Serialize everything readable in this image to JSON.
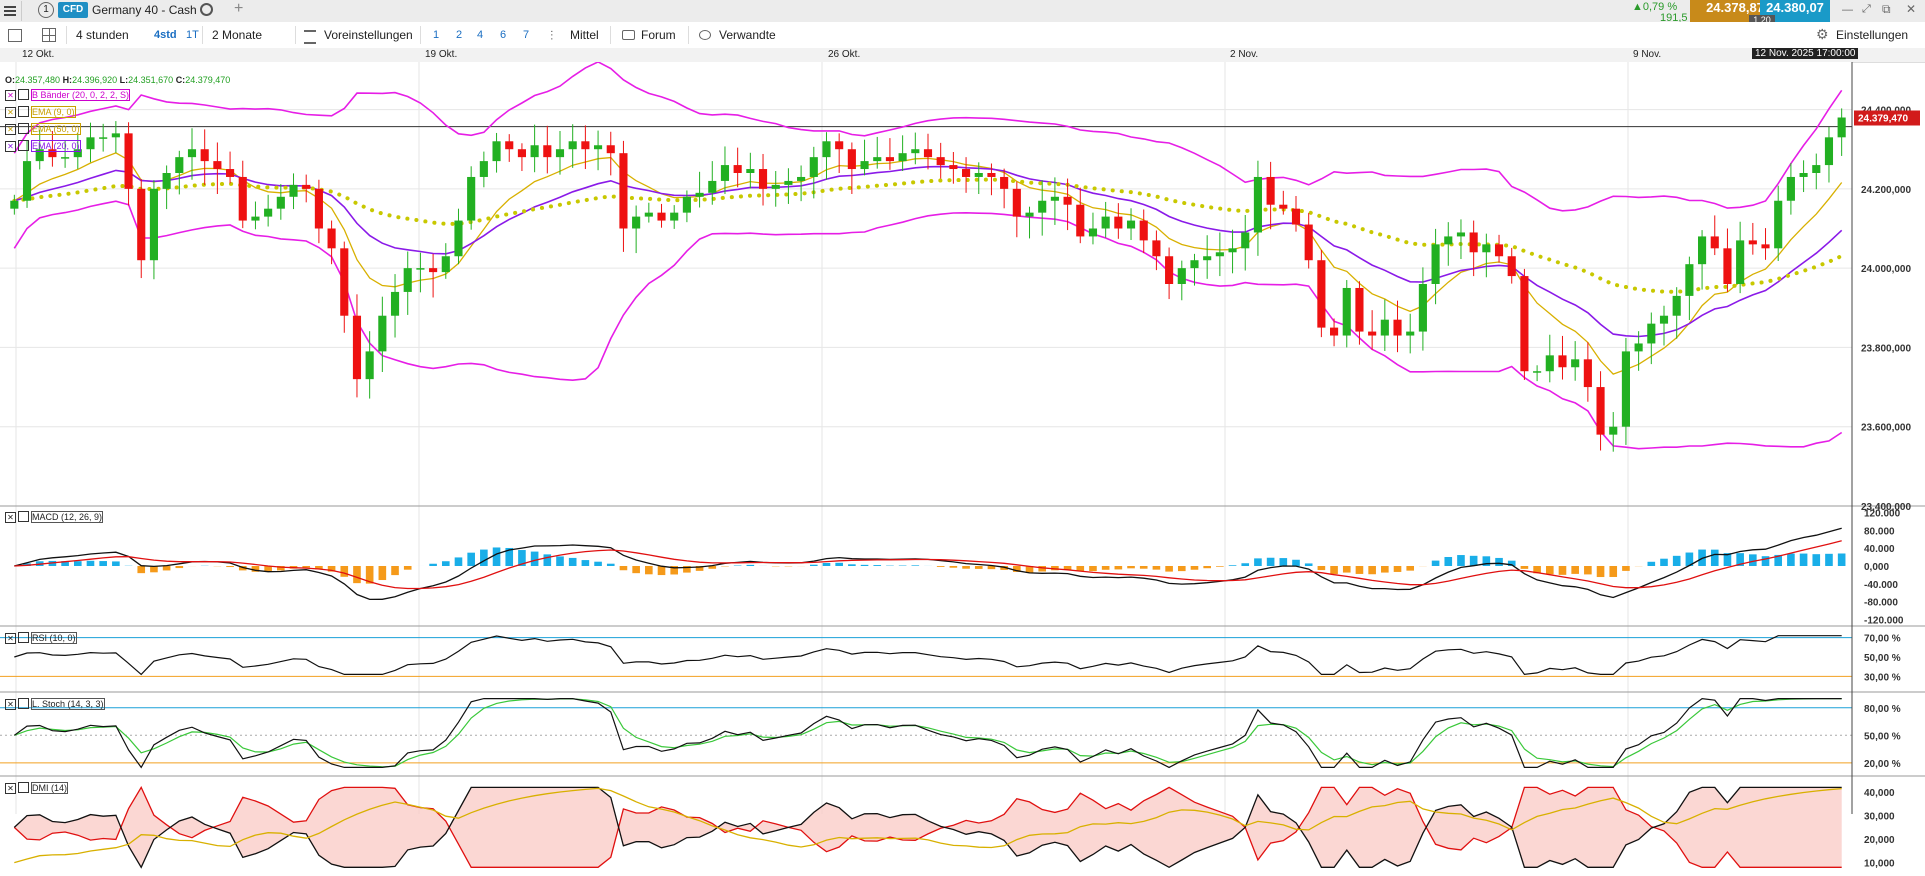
{
  "header": {
    "menu_icon": "hamburger-icon",
    "tab_number": "1",
    "badge": "CFD",
    "instrument": "Germany 40 - Cash",
    "change_pct": "▲0,79 %",
    "change_abs": "191,5",
    "bid": "24.378,87",
    "ask": "24.380,07",
    "spread": "1,20"
  },
  "toolbar": {
    "interval": "4 stunden",
    "short_4": "4std",
    "short_1t": "1T",
    "range": "2 Monate",
    "presets": "Voreinstellungen",
    "nums": [
      "1",
      "2",
      "4",
      "6",
      "7"
    ],
    "indicator": "Mittel",
    "forum": "Forum",
    "related": "Verwandte",
    "settings": "Einstellungen"
  },
  "chart_data": {
    "type": "candlestick",
    "instrument": "Germany 40 - Cash",
    "ohlc_label": {
      "o": "O:",
      "o_val": "24.357,480",
      "h": "H:",
      "h_val": "24.396,920",
      "l": "L:",
      "l_val": "24.351,670",
      "c": "C:",
      "c_val": "24.379,470"
    },
    "last_price": "24.379,470",
    "cursor_date": "12 Nov. 2025 17:00:00",
    "date_labels": [
      "12 Okt.",
      "19 Okt.",
      "26 Okt.",
      "2 Nov.",
      "9 Nov."
    ],
    "ylim": [
      23400,
      24520
    ],
    "y_ticks": [
      "24.400,000",
      "24.200,000",
      "24.000,000",
      "23.800,000",
      "23.600,000",
      "23.400,000"
    ],
    "y_values": [
      24400,
      24200,
      24000,
      23800,
      23600,
      23400
    ],
    "legend": [
      "B Bänder (20, 0, 2, 2, S)",
      "EMA (9, 0)",
      "EMA (50, 0)",
      "EMA (20, 0)"
    ],
    "closes": [
      24170,
      24270,
      24300,
      24280,
      24280,
      24300,
      24330,
      24330,
      24340,
      24200,
      24020,
      24200,
      24240,
      24280,
      24300,
      24270,
      24250,
      24230,
      24120,
      24130,
      24150,
      24180,
      24210,
      24200,
      24100,
      24050,
      23880,
      23720,
      23790,
      23880,
      23940,
      24000,
      24000,
      23990,
      24030,
      24120,
      24230,
      24270,
      24320,
      24300,
      24280,
      24310,
      24280,
      24300,
      24320,
      24300,
      24310,
      24290,
      24100,
      24130,
      24140,
      24120,
      24140,
      24180,
      24190,
      24220,
      24260,
      24240,
      24250,
      24200,
      24210,
      24220,
      24230,
      24280,
      24320,
      24300,
      24250,
      24270,
      24280,
      24270,
      24290,
      24300,
      24280,
      24260,
      24250,
      24230,
      24240,
      24230,
      24200,
      24130,
      24140,
      24170,
      24180,
      24160,
      24080,
      24100,
      24130,
      24100,
      24120,
      24070,
      24030,
      23960,
      24000,
      24020,
      24030,
      24040,
      24050,
      24090,
      24230,
      24160,
      24150,
      24110,
      24020,
      23850,
      23830,
      23950,
      23840,
      23830,
      23870,
      23830,
      23840,
      23960,
      24060,
      24080,
      24090,
      24040,
      24060,
      24030,
      23980,
      23740,
      23740,
      23780,
      23750,
      23770,
      23700,
      23580,
      23600,
      23790,
      23810,
      23860,
      23880,
      23930,
      24010,
      24080,
      24050,
      23960,
      24070,
      24060,
      24050,
      24170,
      24230,
      24240,
      24260,
      24330,
      24380
    ],
    "panels": [
      {
        "name": "MACD (12, 26, 9)",
        "y_ticks": [
          "120.000",
          "80.000",
          "40.000",
          "0,000",
          "-40.000",
          "-80.000",
          "-120.000"
        ],
        "y_values": [
          120000,
          80000,
          40000,
          0,
          -40000,
          -80000,
          -120000
        ]
      },
      {
        "name": "RSI (10, 0)",
        "y_ticks": [
          "70,00 %",
          "50,00 %",
          "30,00 %"
        ],
        "y_values": [
          70,
          50,
          30
        ]
      },
      {
        "name": "L. Stoch (14, 3, 3)",
        "y_ticks": [
          "80,00 %",
          "50,00 %",
          "20,00 %"
        ],
        "y_values": [
          80,
          50,
          20
        ]
      },
      {
        "name": "DMI (14)",
        "y_ticks": [
          "40,000",
          "30,000",
          "20,000",
          "10,000"
        ],
        "y_values": [
          40,
          30,
          20,
          10
        ]
      }
    ],
    "colors": {
      "up": "#22b022",
      "down": "#ee1111",
      "bb": "#e61ee6",
      "ema9": "#d8b000",
      "ema20": "#8a1ae8",
      "ema50": "#c8c800",
      "accent": "#1aa0d8"
    }
  }
}
